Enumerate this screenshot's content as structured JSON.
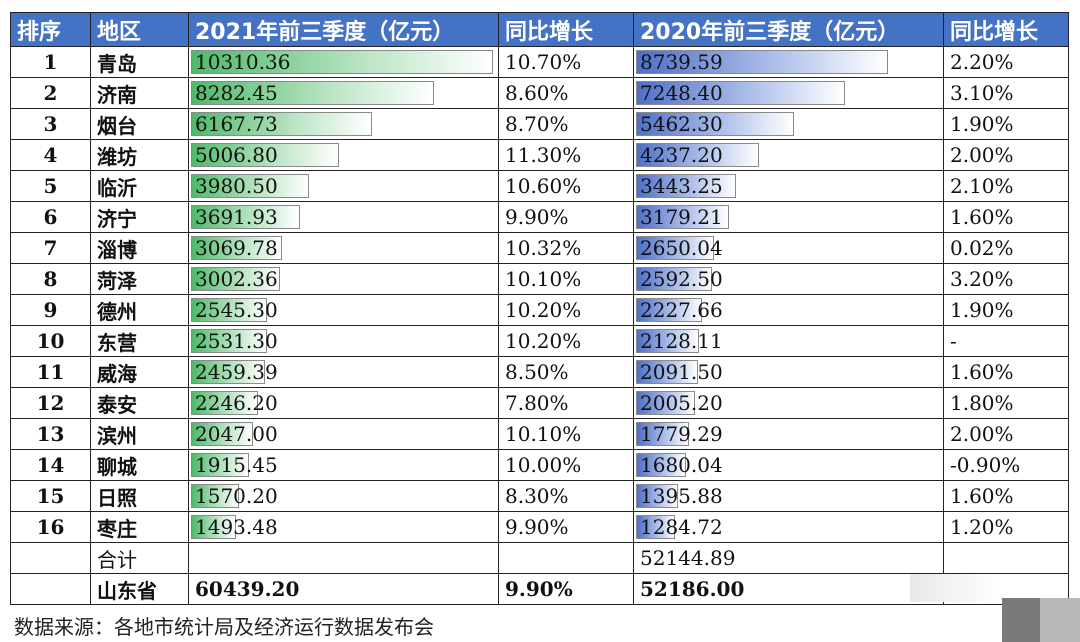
{
  "headers": [
    "排序",
    "地区",
    "2021年前三季度（亿元）",
    "同比增长",
    "2020年前三季度（亿元）",
    "同比增长"
  ],
  "rows": [
    {
      "rank": "1",
      "region": "青岛",
      "v2021": "10310.36",
      "g2021": "10.70%",
      "v2020": "8739.59",
      "g2020": "2.20%"
    },
    {
      "rank": "2",
      "region": "济南",
      "v2021": "8282.45",
      "g2021": "8.60%",
      "v2020": "7248.40",
      "g2020": "3.10%"
    },
    {
      "rank": "3",
      "region": "烟台",
      "v2021": "6167.73",
      "g2021": "8.70%",
      "v2020": "5462.30",
      "g2020": "1.90%"
    },
    {
      "rank": "4",
      "region": "潍坊",
      "v2021": "5006.80",
      "g2021": "11.30%",
      "v2020": "4237.20",
      "g2020": "2.00%"
    },
    {
      "rank": "5",
      "region": "临沂",
      "v2021": "3980.50",
      "g2021": "10.60%",
      "v2020": "3443.25",
      "g2020": "2.10%"
    },
    {
      "rank": "6",
      "region": "济宁",
      "v2021": "3691.93",
      "g2021": "9.90%",
      "v2020": "3179.21",
      "g2020": "1.60%"
    },
    {
      "rank": "7",
      "region": "淄博",
      "v2021": "3069.78",
      "g2021": "10.32%",
      "v2020": "2650.04",
      "g2020": "0.02%"
    },
    {
      "rank": "8",
      "region": "菏泽",
      "v2021": "3002.36",
      "g2021": "10.10%",
      "v2020": "2592.50",
      "g2020": "3.20%"
    },
    {
      "rank": "9",
      "region": "德州",
      "v2021": "2545.30",
      "g2021": "10.20%",
      "v2020": "2227.66",
      "g2020": "1.90%"
    },
    {
      "rank": "10",
      "region": "东营",
      "v2021": "2531.30",
      "g2021": "10.20%",
      "v2020": "2128.11",
      "g2020": "-"
    },
    {
      "rank": "11",
      "region": "威海",
      "v2021": "2459.39",
      "g2021": "8.50%",
      "v2020": "2091.50",
      "g2020": "1.60%"
    },
    {
      "rank": "12",
      "region": "泰安",
      "v2021": "2246.20",
      "g2021": "7.80%",
      "v2020": "2005.20",
      "g2020": "1.80%"
    },
    {
      "rank": "13",
      "region": "滨州",
      "v2021": "2047.00",
      "g2021": "10.10%",
      "v2020": "1779.29",
      "g2020": "2.00%"
    },
    {
      "rank": "14",
      "region": "聊城",
      "v2021": "1915.45",
      "g2021": "10.00%",
      "v2020": "1680.04",
      "g2020": "-0.90%"
    },
    {
      "rank": "15",
      "region": "日照",
      "v2021": "1570.20",
      "g2021": "8.30%",
      "v2020": "1395.88",
      "g2020": "1.60%"
    },
    {
      "rank": "16",
      "region": "枣庄",
      "v2021": "1493.48",
      "g2021": "9.90%",
      "v2020": "1284.72",
      "g2020": "1.20%"
    }
  ],
  "subtotal": {
    "label": "合计",
    "v2021": "",
    "g2021": "",
    "v2020": "52144.89",
    "g2020": ""
  },
  "total": {
    "label": "山东省",
    "v2021": "60439.20",
    "g2021": "9.90%",
    "v2020": "52186.00",
    "g2020": ""
  },
  "source": "数据来源：各地市统计局及经济运行数据发布会",
  "colors": {
    "header_bg": "#4472c4",
    "bar_2021": "#4fb96a",
    "bar_2020": "#4f6fc8"
  }
}
